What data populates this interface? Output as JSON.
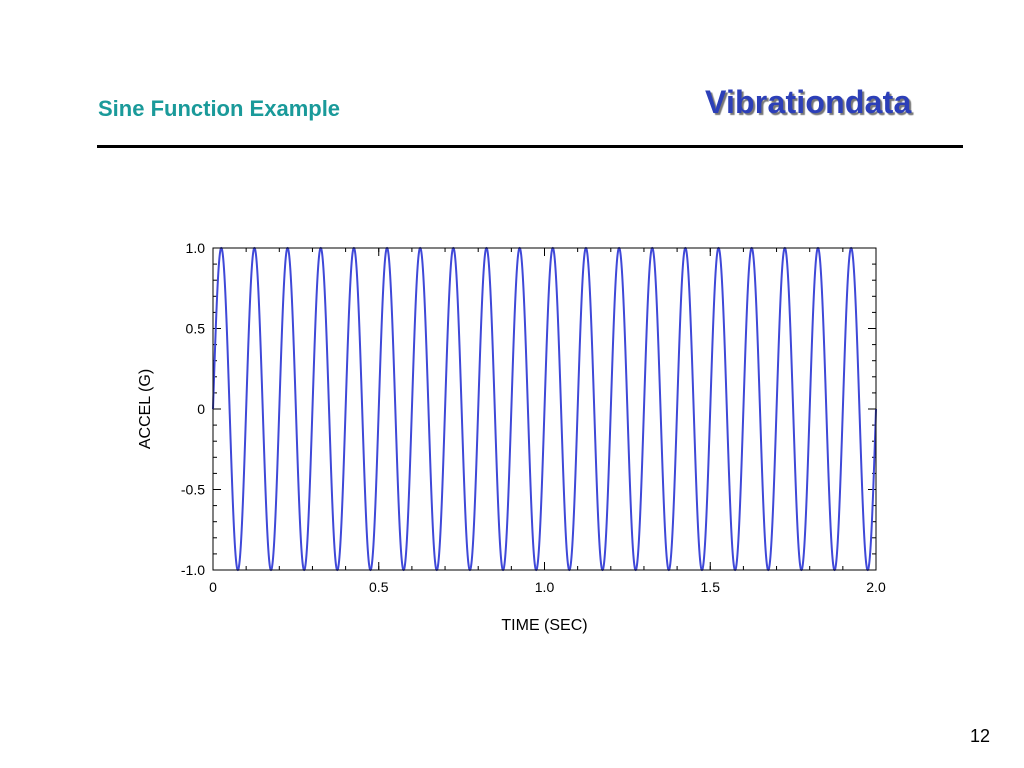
{
  "slide": {
    "title": "Sine Function Example",
    "logo_text": "Vibrationdata",
    "page_number": "12"
  },
  "colors": {
    "title": "#1a9a9a",
    "logo": "#2c3fb8",
    "series": "#3f48d8"
  },
  "chart_data": {
    "type": "line",
    "title": "",
    "xlabel": "TIME (SEC)",
    "ylabel": "ACCEL (G)",
    "xlim": [
      0,
      2.0
    ],
    "ylim": [
      -1.0,
      1.0
    ],
    "x_ticks": [
      0,
      0.5,
      1.0,
      1.5,
      2.0
    ],
    "x_tick_labels": [
      "0",
      "0.5",
      "1.0",
      "1.5",
      "2.0"
    ],
    "y_ticks": [
      -1.0,
      -0.5,
      0,
      0.5,
      1.0
    ],
    "y_tick_labels": [
      "-1.0",
      "-0.5",
      "0",
      "0.5",
      "1.0"
    ],
    "grid": false,
    "legend": "none",
    "series": [
      {
        "function": "sine",
        "amplitude": 1.0,
        "frequency_hz": 10,
        "phase": 0,
        "x_start": 0,
        "x_end": 2.0,
        "color": "#3f48d8"
      }
    ]
  }
}
